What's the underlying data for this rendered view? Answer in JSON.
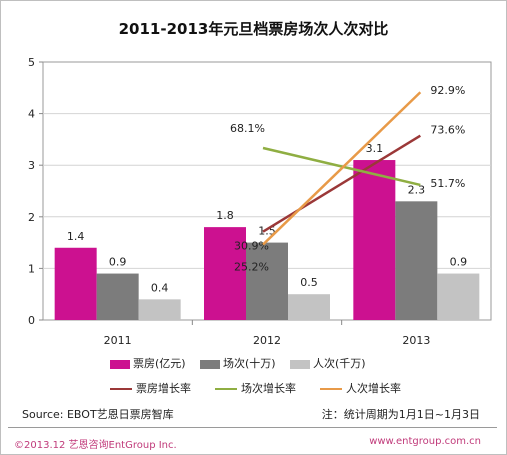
{
  "chart_data": {
    "type": "bar",
    "title": "2011-2013年元旦档票房场次人次对比",
    "categories": [
      "2011",
      "2012",
      "2013"
    ],
    "ylim": [
      0,
      5
    ],
    "yticks": [
      0,
      1,
      2,
      3,
      4,
      5
    ],
    "grid": true,
    "series": [
      {
        "name": "票房(亿元)",
        "color": "#cc1190",
        "values": [
          1.4,
          1.8,
          3.1
        ],
        "labels": [
          "1.4",
          "1.8",
          "3.1"
        ]
      },
      {
        "name": "场次(十万)",
        "color": "#7c7c7c",
        "values": [
          0.9,
          1.5,
          2.3
        ],
        "labels": [
          "0.9",
          "1.5",
          "2.3"
        ]
      },
      {
        "name": "人次(千万)",
        "color": "#c3c3c3",
        "values": [
          0.4,
          0.5,
          0.9
        ],
        "labels": [
          "0.4",
          "0.5",
          "0.9"
        ]
      }
    ],
    "growth_lines": {
      "x_range": [
        "2012",
        "2013"
      ],
      "series": [
        {
          "name": "票房增长率",
          "color": "#9b3838",
          "values": [
            30.9,
            73.6
          ],
          "labels": [
            "30.9%",
            "73.6%"
          ]
        },
        {
          "name": "场次增长率",
          "color": "#8fae42",
          "values": [
            68.1,
            51.7
          ],
          "labels": [
            "68.1%",
            "51.7%"
          ]
        },
        {
          "name": "人次增长率",
          "color": "#e89a48",
          "values": [
            25.2,
            92.9
          ],
          "labels": [
            "25.2%",
            "92.9%"
          ]
        }
      ]
    },
    "legend_position": "bottom"
  },
  "footer": {
    "source": "Source: EBOT艺恩日票房智库",
    "note": "注：统计周期为1月1日~1月3日",
    "copyright": "©2013.12  艺恩咨询EntGroup Inc.",
    "website": "www.entgroup.com.cn"
  }
}
